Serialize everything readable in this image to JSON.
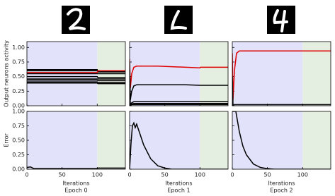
{
  "chart_data": [
    {
      "type": "line",
      "ylabel": "Output neurons activity",
      "xlim": [
        0,
        140
      ],
      "ylim": [
        0,
        1.1
      ],
      "xticks": [
        0,
        50,
        100
      ],
      "xtick_labels": false,
      "yticks": [
        {
          "value": 0,
          "label": "0.00"
        },
        {
          "value": 0.25,
          "label": "0.25"
        },
        {
          "value": 0.5,
          "label": "0.50"
        },
        {
          "value": 0.75,
          "label": "0.75"
        },
        {
          "value": 1,
          "label": "1.00"
        }
      ],
      "regions": [
        {
          "x0": 0,
          "x1": 100,
          "color": "#e2e2fa"
        },
        {
          "x0": 100,
          "x1": 140,
          "color": "#e5efe1"
        }
      ],
      "x": [
        0,
        100,
        101,
        140
      ],
      "series": [
        {
          "color": "#000000",
          "values": [
            0.62,
            0.62,
            0.59,
            0.59
          ]
        },
        {
          "color": "#000000",
          "values": [
            0.6,
            0.6,
            0.58,
            0.58
          ]
        },
        {
          "color": "#e00000",
          "values": [
            0.57,
            0.57,
            0.6,
            0.6
          ]
        },
        {
          "color": "#000000",
          "values": [
            0.55,
            0.55,
            0.55,
            0.55
          ]
        },
        {
          "color": "#000000",
          "values": [
            0.5,
            0.5,
            0.48,
            0.48
          ]
        },
        {
          "color": "#000000",
          "values": [
            0.46,
            0.46,
            0.46,
            0.46
          ]
        },
        {
          "color": "#000000",
          "values": [
            0.44,
            0.44,
            0.43,
            0.43
          ]
        },
        {
          "color": "#000000",
          "values": [
            0.41,
            0.41,
            0.4,
            0.4
          ]
        },
        {
          "color": "#000000",
          "values": [
            0.39,
            0.39,
            0.38,
            0.38
          ]
        }
      ]
    },
    {
      "type": "line",
      "xlim": [
        0,
        140
      ],
      "ylim": [
        0,
        1.1
      ],
      "xticks": [
        0,
        50,
        100
      ],
      "xtick_labels": false,
      "yticks": [
        0,
        0.25,
        0.5,
        0.75,
        1
      ],
      "regions": [
        {
          "x0": 0,
          "x1": 100,
          "color": "#e2e2fa"
        },
        {
          "x0": 100,
          "x1": 140,
          "color": "#e5efe1"
        }
      ],
      "x": [
        0,
        1,
        3,
        6,
        10,
        20,
        40,
        60,
        80,
        100,
        101,
        140
      ],
      "series": [
        {
          "color": "#e00000",
          "values": [
            0.8,
            0.3,
            0.55,
            0.66,
            0.68,
            0.68,
            0.68,
            0.67,
            0.66,
            0.65,
            0.66,
            0.66
          ]
        },
        {
          "color": "#000000",
          "values": [
            0.75,
            0.1,
            0.25,
            0.34,
            0.36,
            0.36,
            0.36,
            0.36,
            0.36,
            0.35,
            0.35,
            0.35
          ]
        },
        {
          "color": "#000000",
          "values": [
            0.4,
            0.02,
            0.05,
            0.07,
            0.07,
            0.07,
            0.07,
            0.07,
            0.07,
            0.07,
            0.07,
            0.07
          ]
        },
        {
          "color": "#000000",
          "values": [
            0.3,
            0.01,
            0.03,
            0.04,
            0.04,
            0.04,
            0.04,
            0.04,
            0.04,
            0.04,
            0.04,
            0.04
          ]
        },
        {
          "color": "#000000",
          "values": [
            0.2,
            0.01,
            0.02,
            0.02,
            0.02,
            0.02,
            0.02,
            0.02,
            0.02,
            0.02,
            0.02,
            0.02
          ]
        }
      ]
    },
    {
      "type": "line",
      "xlim": [
        0,
        140
      ],
      "ylim": [
        0,
        1.1
      ],
      "xticks": [
        0,
        50,
        100
      ],
      "xtick_labels": false,
      "yticks": [
        0,
        0.25,
        0.5,
        0.75,
        1
      ],
      "regions": [
        {
          "x0": 0,
          "x1": 100,
          "color": "#e2e2fa"
        },
        {
          "x0": 100,
          "x1": 140,
          "color": "#e5efe1"
        }
      ],
      "x": [
        0,
        1,
        3,
        6,
        10,
        20,
        40,
        60,
        80,
        100,
        101,
        140
      ],
      "series": [
        {
          "color": "#e00000",
          "values": [
            0.9,
            0.1,
            0.6,
            0.9,
            0.94,
            0.94,
            0.94,
            0.94,
            0.94,
            0.94,
            0.94,
            0.94
          ]
        },
        {
          "color": "#000000",
          "values": [
            0.5,
            0.01,
            0.02,
            0.02,
            0.02,
            0.02,
            0.02,
            0.02,
            0.02,
            0.02,
            0.02,
            0.02
          ]
        }
      ]
    },
    {
      "type": "line",
      "ylabel": "Error",
      "xlabel": "Iterations",
      "epoch": "Epoch 0",
      "xlim": [
        0,
        140
      ],
      "ylim": [
        0,
        1
      ],
      "xticks": [
        0,
        50,
        100
      ],
      "xtick_labels": true,
      "yticks": [
        {
          "value": 0,
          "label": "0.00"
        },
        {
          "value": 0.25,
          "label": "0.25"
        },
        {
          "value": 0.5,
          "label": "0.50"
        },
        {
          "value": 0.75,
          "label": "0.75"
        },
        {
          "value": 1,
          "label": "1.00"
        }
      ],
      "regions": [
        {
          "x0": 0,
          "x1": 100,
          "color": "#e2e2fa"
        },
        {
          "x0": 100,
          "x1": 140,
          "color": "#e5efe1"
        }
      ],
      "x": [
        0,
        5,
        10,
        15,
        100,
        101,
        140
      ],
      "series": [
        {
          "color": "#000000",
          "values": [
            0.03,
            0.04,
            0.01,
            0.01,
            0.01,
            0.02,
            0.02
          ]
        }
      ]
    },
    {
      "type": "line",
      "xlabel": "Iterations",
      "epoch": "Epoch 1",
      "xlim": [
        0,
        140
      ],
      "ylim": [
        0,
        1
      ],
      "xticks": [
        0,
        50,
        100
      ],
      "xtick_labels": true,
      "yticks": [
        0,
        0.25,
        0.5,
        0.75,
        1
      ],
      "regions": [
        {
          "x0": 0,
          "x1": 100,
          "color": "#e2e2fa"
        },
        {
          "x0": 100,
          "x1": 140,
          "color": "#e5efe1"
        }
      ],
      "x": [
        0,
        2,
        4,
        6,
        8,
        10,
        15,
        20,
        30,
        40,
        50,
        60,
        100,
        101,
        140
      ],
      "series": [
        {
          "color": "#000000",
          "values": [
            0,
            0.45,
            0.75,
            0.8,
            0.72,
            0.78,
            0.6,
            0.42,
            0.18,
            0.06,
            0.02,
            0,
            0,
            0,
            0
          ]
        }
      ]
    },
    {
      "type": "line",
      "xlabel": "Iterations",
      "epoch": "Epoch 2",
      "xlim": [
        0,
        140
      ],
      "ylim": [
        0,
        1
      ],
      "xticks": [
        0,
        50,
        100
      ],
      "xtick_labels": true,
      "yticks": [
        0,
        0.25,
        0.5,
        0.75,
        1
      ],
      "regions": [
        {
          "x0": 0,
          "x1": 100,
          "color": "#e2e2fa"
        },
        {
          "x0": 100,
          "x1": 140,
          "color": "#e5efe1"
        }
      ],
      "x": [
        0,
        5,
        10,
        15,
        20,
        30,
        40,
        50,
        60,
        100,
        140
      ],
      "series": [
        {
          "color": "#000000",
          "values": [
            1,
            1,
            0.65,
            0.4,
            0.25,
            0.09,
            0.03,
            0.01,
            0,
            0,
            0
          ]
        }
      ]
    }
  ]
}
